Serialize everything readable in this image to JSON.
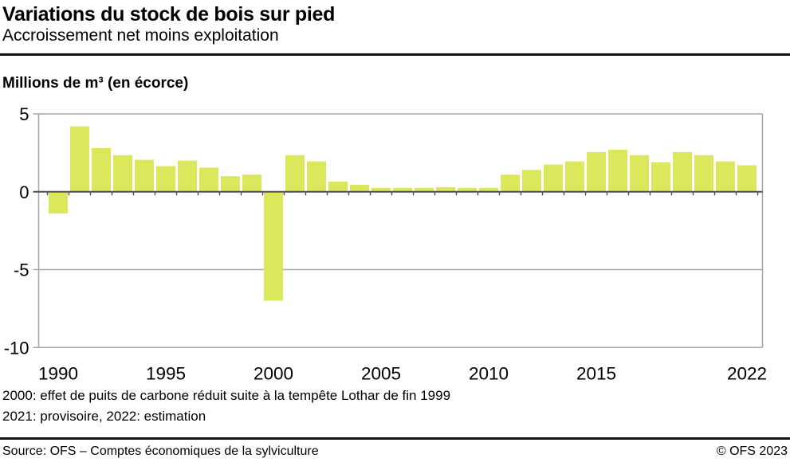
{
  "header": {
    "title": "Variations du stock de bois sur pied",
    "subtitle": "Accroissement net moins exploitation"
  },
  "chart_data": {
    "type": "bar",
    "title": "Variations du stock de bois sur pied",
    "subtitle": "Accroissement net moins exploitation",
    "ylabel": "Millions de m³ (en écorce)",
    "categories": [
      1990,
      1991,
      1992,
      1993,
      1994,
      1995,
      1996,
      1997,
      1998,
      1999,
      2000,
      2001,
      2002,
      2003,
      2004,
      2005,
      2006,
      2007,
      2008,
      2009,
      2010,
      2011,
      2012,
      2013,
      2014,
      2015,
      2016,
      2017,
      2018,
      2019,
      2020,
      2021,
      2022
    ],
    "values": [
      -1.4,
      4.2,
      2.8,
      2.35,
      2.05,
      1.65,
      2.0,
      1.55,
      1.0,
      1.1,
      -7.0,
      2.35,
      1.95,
      0.65,
      0.45,
      0.25,
      0.25,
      0.25,
      0.3,
      0.25,
      0.25,
      1.1,
      1.4,
      1.75,
      1.95,
      2.55,
      2.7,
      2.35,
      1.9,
      2.55,
      2.35,
      1.95,
      1.7
    ],
    "ylim": [
      -10,
      5
    ],
    "yticks": [
      5,
      0,
      -5,
      -10
    ],
    "xticks": [
      1990,
      1995,
      2000,
      2005,
      2010,
      2015,
      2022
    ],
    "grid": true,
    "legend": "none",
    "bar_color": "#dbe85c",
    "grid_color": "#a6a6a6",
    "zero_line_color": "#4d4d4d"
  },
  "footnotes": [
    "2000: effet de puits de carbone réduit suite à la tempête Lothar de fin 1999",
    "2021: provisoire, 2022: estimation"
  ],
  "footer": {
    "source": "Source: OFS – Comptes économiques de la sylviculture",
    "copyright": "© OFS 2023"
  }
}
